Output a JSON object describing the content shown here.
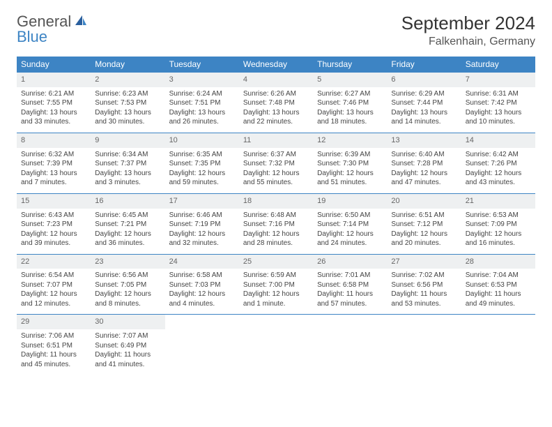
{
  "logo": {
    "part1": "General",
    "part2": "Blue"
  },
  "title": "September 2024",
  "location": "Falkenhain, Germany",
  "header_color": "#3d84c4",
  "daynum_bg": "#eef0f1",
  "border_color": "#3d84c4",
  "weekdays": [
    "Sunday",
    "Monday",
    "Tuesday",
    "Wednesday",
    "Thursday",
    "Friday",
    "Saturday"
  ],
  "weeks": [
    [
      {
        "n": "1",
        "sunrise": "Sunrise: 6:21 AM",
        "sunset": "Sunset: 7:55 PM",
        "day": "Daylight: 13 hours and 33 minutes."
      },
      {
        "n": "2",
        "sunrise": "Sunrise: 6:23 AM",
        "sunset": "Sunset: 7:53 PM",
        "day": "Daylight: 13 hours and 30 minutes."
      },
      {
        "n": "3",
        "sunrise": "Sunrise: 6:24 AM",
        "sunset": "Sunset: 7:51 PM",
        "day": "Daylight: 13 hours and 26 minutes."
      },
      {
        "n": "4",
        "sunrise": "Sunrise: 6:26 AM",
        "sunset": "Sunset: 7:48 PM",
        "day": "Daylight: 13 hours and 22 minutes."
      },
      {
        "n": "5",
        "sunrise": "Sunrise: 6:27 AM",
        "sunset": "Sunset: 7:46 PM",
        "day": "Daylight: 13 hours and 18 minutes."
      },
      {
        "n": "6",
        "sunrise": "Sunrise: 6:29 AM",
        "sunset": "Sunset: 7:44 PM",
        "day": "Daylight: 13 hours and 14 minutes."
      },
      {
        "n": "7",
        "sunrise": "Sunrise: 6:31 AM",
        "sunset": "Sunset: 7:42 PM",
        "day": "Daylight: 13 hours and 10 minutes."
      }
    ],
    [
      {
        "n": "8",
        "sunrise": "Sunrise: 6:32 AM",
        "sunset": "Sunset: 7:39 PM",
        "day": "Daylight: 13 hours and 7 minutes."
      },
      {
        "n": "9",
        "sunrise": "Sunrise: 6:34 AM",
        "sunset": "Sunset: 7:37 PM",
        "day": "Daylight: 13 hours and 3 minutes."
      },
      {
        "n": "10",
        "sunrise": "Sunrise: 6:35 AM",
        "sunset": "Sunset: 7:35 PM",
        "day": "Daylight: 12 hours and 59 minutes."
      },
      {
        "n": "11",
        "sunrise": "Sunrise: 6:37 AM",
        "sunset": "Sunset: 7:32 PM",
        "day": "Daylight: 12 hours and 55 minutes."
      },
      {
        "n": "12",
        "sunrise": "Sunrise: 6:39 AM",
        "sunset": "Sunset: 7:30 PM",
        "day": "Daylight: 12 hours and 51 minutes."
      },
      {
        "n": "13",
        "sunrise": "Sunrise: 6:40 AM",
        "sunset": "Sunset: 7:28 PM",
        "day": "Daylight: 12 hours and 47 minutes."
      },
      {
        "n": "14",
        "sunrise": "Sunrise: 6:42 AM",
        "sunset": "Sunset: 7:26 PM",
        "day": "Daylight: 12 hours and 43 minutes."
      }
    ],
    [
      {
        "n": "15",
        "sunrise": "Sunrise: 6:43 AM",
        "sunset": "Sunset: 7:23 PM",
        "day": "Daylight: 12 hours and 39 minutes."
      },
      {
        "n": "16",
        "sunrise": "Sunrise: 6:45 AM",
        "sunset": "Sunset: 7:21 PM",
        "day": "Daylight: 12 hours and 36 minutes."
      },
      {
        "n": "17",
        "sunrise": "Sunrise: 6:46 AM",
        "sunset": "Sunset: 7:19 PM",
        "day": "Daylight: 12 hours and 32 minutes."
      },
      {
        "n": "18",
        "sunrise": "Sunrise: 6:48 AM",
        "sunset": "Sunset: 7:16 PM",
        "day": "Daylight: 12 hours and 28 minutes."
      },
      {
        "n": "19",
        "sunrise": "Sunrise: 6:50 AM",
        "sunset": "Sunset: 7:14 PM",
        "day": "Daylight: 12 hours and 24 minutes."
      },
      {
        "n": "20",
        "sunrise": "Sunrise: 6:51 AM",
        "sunset": "Sunset: 7:12 PM",
        "day": "Daylight: 12 hours and 20 minutes."
      },
      {
        "n": "21",
        "sunrise": "Sunrise: 6:53 AM",
        "sunset": "Sunset: 7:09 PM",
        "day": "Daylight: 12 hours and 16 minutes."
      }
    ],
    [
      {
        "n": "22",
        "sunrise": "Sunrise: 6:54 AM",
        "sunset": "Sunset: 7:07 PM",
        "day": "Daylight: 12 hours and 12 minutes."
      },
      {
        "n": "23",
        "sunrise": "Sunrise: 6:56 AM",
        "sunset": "Sunset: 7:05 PM",
        "day": "Daylight: 12 hours and 8 minutes."
      },
      {
        "n": "24",
        "sunrise": "Sunrise: 6:58 AM",
        "sunset": "Sunset: 7:03 PM",
        "day": "Daylight: 12 hours and 4 minutes."
      },
      {
        "n": "25",
        "sunrise": "Sunrise: 6:59 AM",
        "sunset": "Sunset: 7:00 PM",
        "day": "Daylight: 12 hours and 1 minute."
      },
      {
        "n": "26",
        "sunrise": "Sunrise: 7:01 AM",
        "sunset": "Sunset: 6:58 PM",
        "day": "Daylight: 11 hours and 57 minutes."
      },
      {
        "n": "27",
        "sunrise": "Sunrise: 7:02 AM",
        "sunset": "Sunset: 6:56 PM",
        "day": "Daylight: 11 hours and 53 minutes."
      },
      {
        "n": "28",
        "sunrise": "Sunrise: 7:04 AM",
        "sunset": "Sunset: 6:53 PM",
        "day": "Daylight: 11 hours and 49 minutes."
      }
    ],
    [
      {
        "n": "29",
        "sunrise": "Sunrise: 7:06 AM",
        "sunset": "Sunset: 6:51 PM",
        "day": "Daylight: 11 hours and 45 minutes."
      },
      {
        "n": "30",
        "sunrise": "Sunrise: 7:07 AM",
        "sunset": "Sunset: 6:49 PM",
        "day": "Daylight: 11 hours and 41 minutes."
      },
      null,
      null,
      null,
      null,
      null
    ]
  ]
}
